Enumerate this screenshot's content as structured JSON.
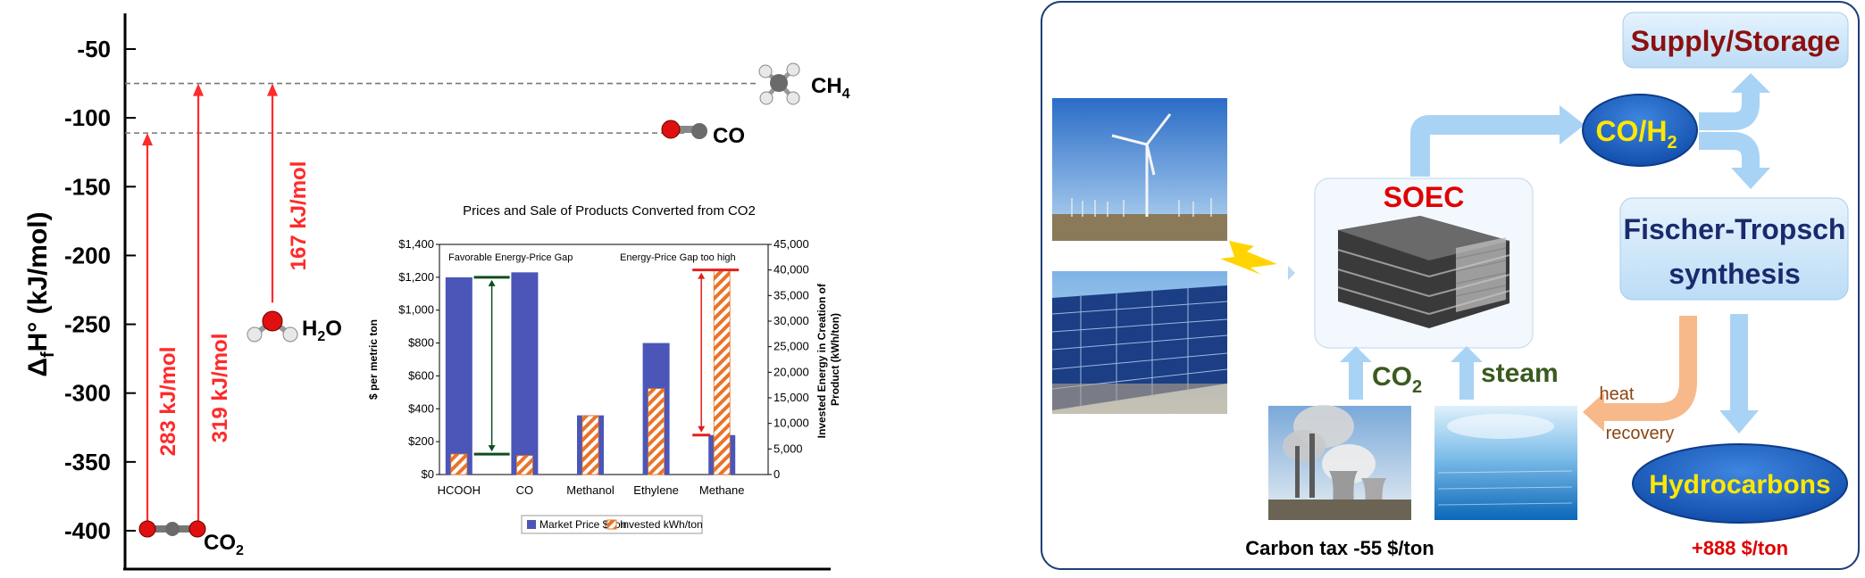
{
  "left_panel": {
    "y_axis": {
      "label_main": "Δ",
      "label_sub": "f",
      "label_rest": "H° (kJ/mol)",
      "ticks": [
        -50,
        -100,
        -150,
        -200,
        -250,
        -300,
        -350,
        -400
      ],
      "range": [
        -425,
        -35
      ]
    },
    "levels": [
      {
        "name": "CO2",
        "label_main": "CO",
        "label_sub": "2",
        "value": -394
      },
      {
        "name": "H2O",
        "label_main": "H",
        "label_sub": "2",
        "label_rest": "O",
        "value": -242
      },
      {
        "name": "CO",
        "label_main": "CO",
        "value": -111
      },
      {
        "name": "CH4",
        "label_main": "CH",
        "label_sub": "4",
        "value": -75
      }
    ],
    "transitions": [
      {
        "label": "283 kJ/mol",
        "from": -394,
        "to": -111
      },
      {
        "label": "319 kJ/mol",
        "from": -394,
        "to": -75
      },
      {
        "label": "167 kJ/mol",
        "from": -242,
        "to": -75
      }
    ],
    "colors": {
      "arrow": "#ff2a2a",
      "oxygen": "#e01010",
      "carbon": "#6a6a6a",
      "hydrogen": "#e8e8e8"
    }
  },
  "chart_data": {
    "type": "bar",
    "title": "Prices and Sale of Products Converted from CO2",
    "categories": [
      "HCOOH",
      "CO",
      "Methanol",
      "Ethylene",
      "Methane"
    ],
    "series": [
      {
        "name": "Market Price $/ton",
        "axis": "left",
        "values": [
          1200,
          1230,
          360,
          800,
          240
        ],
        "color": "#4b56b8"
      },
      {
        "name": "Invested kWh/ton",
        "axis": "right",
        "values": [
          4000,
          3700,
          11500,
          16800,
          40000
        ],
        "color": "#e8742a"
      }
    ],
    "ylabel": "$ per metric ton",
    "ylabel2": "Invested Energy in Creation of Product (kWh/ton)",
    "ylim": [
      0,
      1400
    ],
    "ylim2": [
      0,
      45000
    ],
    "yticks": [
      "$0",
      "$200",
      "$400",
      "$600",
      "$800",
      "$1,000",
      "$1,200",
      "$1,400"
    ],
    "yticks2": [
      "0",
      "5,000",
      "10,000",
      "15,000",
      "20,000",
      "25,000",
      "30,000",
      "35,000",
      "40,000",
      "45,000"
    ],
    "annotations": [
      "Favorable Energy-Price Gap",
      "Energy-Price Gap too high"
    ],
    "legend": "bottom"
  },
  "right_panel": {
    "soec_label": "SOEC",
    "co_h2": {
      "main": "CO/H",
      "sub": "2"
    },
    "supply_storage": "Supply/Storage",
    "fischer_tropsch_line1": "Fischer-Tropsch",
    "fischer_tropsch_line2": "synthesis",
    "hydrocarbons": "Hydrocarbons",
    "co2_input": {
      "main": "CO",
      "sub": "2"
    },
    "steam_input": "steam",
    "heat_line1": "heat",
    "heat_line2": "recovery",
    "carbon_tax": "Carbon tax -55 $/ton",
    "profit": "+888 $/ton",
    "colors": {
      "arrow": "#a9d3f5",
      "heat_arrow": "#f7b98a",
      "box": "#d2e9fb",
      "ellipse": "#1e5fc0",
      "yellow_text": "#ffe800",
      "red_text": "#e00000",
      "dark_red": "#8b1010",
      "navy": "#1a2a6c",
      "green": "#3a5a1e",
      "brown": "#8b4513"
    }
  }
}
